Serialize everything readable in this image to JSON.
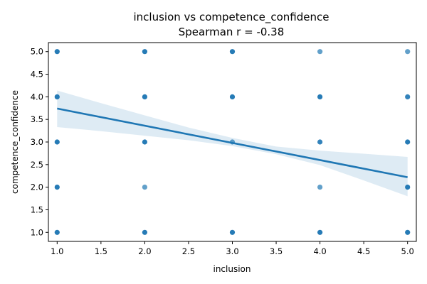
{
  "chart_data": {
    "type": "scatter",
    "title_line1": "inclusion vs competence_confidence",
    "title_line2": "Spearman r = -0.38",
    "xlabel": "inclusion",
    "ylabel": "competence_confidence",
    "xlim": [
      0.9,
      5.1
    ],
    "ylim": [
      0.8,
      5.2
    ],
    "xticks": [
      "1.0",
      "1.5",
      "2.0",
      "2.5",
      "3.0",
      "3.5",
      "4.0",
      "4.5",
      "5.0"
    ],
    "yticks": [
      "1.0",
      "1.5",
      "2.0",
      "2.5",
      "3.0",
      "3.5",
      "4.0",
      "4.5",
      "5.0"
    ],
    "grid": false,
    "point_color": "#1f77b4",
    "points": [
      {
        "x": 1,
        "y": 5,
        "count": 6
      },
      {
        "x": 1,
        "y": 4,
        "count": 5
      },
      {
        "x": 1,
        "y": 3,
        "count": 3
      },
      {
        "x": 1,
        "y": 2,
        "count": 3
      },
      {
        "x": 1,
        "y": 1,
        "count": 3
      },
      {
        "x": 2,
        "y": 5,
        "count": 5
      },
      {
        "x": 2,
        "y": 4,
        "count": 5
      },
      {
        "x": 2,
        "y": 3,
        "count": 6
      },
      {
        "x": 2,
        "y": 2,
        "count": 1
      },
      {
        "x": 2,
        "y": 1,
        "count": 4
      },
      {
        "x": 3,
        "y": 5,
        "count": 3
      },
      {
        "x": 3,
        "y": 4,
        "count": 3
      },
      {
        "x": 3,
        "y": 3,
        "count": 1
      },
      {
        "x": 3,
        "y": 1,
        "count": 5
      },
      {
        "x": 4,
        "y": 5,
        "count": 1
      },
      {
        "x": 4,
        "y": 4,
        "count": 5
      },
      {
        "x": 4,
        "y": 3,
        "count": 2
      },
      {
        "x": 4,
        "y": 2,
        "count": 1
      },
      {
        "x": 4,
        "y": 1,
        "count": 4
      },
      {
        "x": 5,
        "y": 5,
        "count": 1
      },
      {
        "x": 5,
        "y": 4,
        "count": 2
      },
      {
        "x": 5,
        "y": 3,
        "count": 4
      },
      {
        "x": 5,
        "y": 2,
        "count": 5
      },
      {
        "x": 5,
        "y": 1,
        "count": 6
      }
    ],
    "regression": {
      "x": [
        1,
        5
      ],
      "y": [
        3.74,
        2.22
      ]
    },
    "confidence_band": {
      "x": [
        1.0,
        1.5,
        2.0,
        2.5,
        3.0,
        3.5,
        4.0,
        4.5,
        5.0
      ],
      "upper": [
        4.14,
        3.86,
        3.59,
        3.32,
        3.09,
        2.9,
        2.81,
        2.74,
        2.67
      ],
      "lower": [
        3.33,
        3.24,
        3.14,
        3.04,
        2.91,
        2.73,
        2.49,
        2.15,
        1.8
      ]
    }
  }
}
